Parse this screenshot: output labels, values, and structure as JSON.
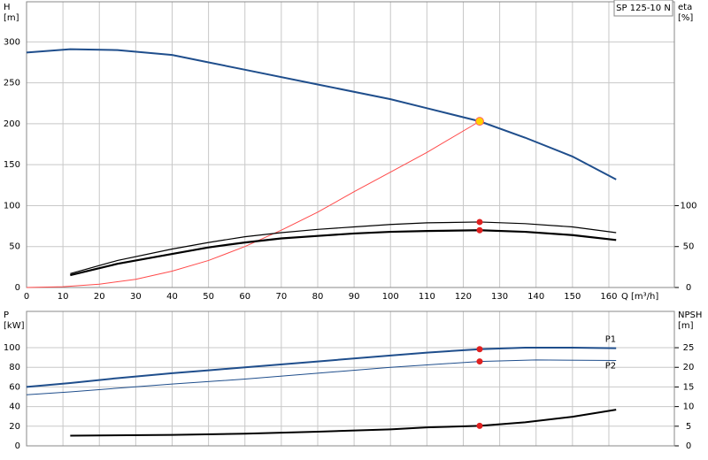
{
  "chart_data": [
    {
      "type": "line",
      "title": "SP 125-10 N",
      "y_label": "H",
      "y_unit": "[m]",
      "y2_label": "eta",
      "y2_unit": "[%]",
      "x_label": "Q [m³/h]",
      "xlim": [
        0,
        178
      ],
      "xticks": [
        0,
        10,
        20,
        30,
        40,
        50,
        60,
        70,
        80,
        90,
        100,
        110,
        120,
        130,
        140,
        150,
        160
      ],
      "ylim": [
        0,
        349
      ],
      "yticks": [
        0,
        50,
        100,
        150,
        200,
        250,
        300
      ],
      "y2lim": [
        0,
        349
      ],
      "y2ticks": [
        0,
        50,
        100
      ],
      "grid": true,
      "series": [
        {
          "color": "#1f4e8c",
          "line_width": 2,
          "x": [
            0,
            12,
            25,
            40,
            50,
            60,
            80,
            100,
            110,
            124.5,
            137,
            150,
            162
          ],
          "values": [
            287,
            291,
            290,
            284,
            275,
            266,
            248,
            230,
            219,
            203,
            183,
            160,
            132
          ]
        },
        {
          "color": "#ff4a4a",
          "line_width": 1,
          "x": [
            0,
            10,
            20,
            30,
            40,
            50,
            60,
            70,
            80,
            90,
            100,
            110,
            124.5
          ],
          "values": [
            0,
            1,
            4,
            10,
            20,
            33,
            50,
            70,
            92,
            117,
            141,
            165,
            203
          ]
        },
        {
          "color": "#000000",
          "line_width": 1.2,
          "axis": "y2",
          "x": [
            12,
            25,
            40,
            50,
            60,
            70,
            80,
            90,
            100,
            110,
            124.5,
            137,
            150,
            162
          ],
          "values": [
            17,
            33,
            47,
            55,
            62,
            67,
            71,
            74,
            77,
            79,
            80,
            78,
            74,
            67
          ]
        },
        {
          "color": "#000000",
          "line_width": 2.2,
          "axis": "y2",
          "x": [
            12,
            25,
            40,
            50,
            60,
            70,
            80,
            90,
            100,
            110,
            124.5,
            137,
            150,
            162
          ],
          "values": [
            15,
            29,
            41,
            49,
            55,
            60,
            63,
            66,
            68,
            69,
            70,
            68,
            64,
            58
          ]
        }
      ],
      "markers": [
        {
          "x": 124.5,
          "y": 203,
          "color": "#ffd200",
          "stroke": "#ff6060",
          "radius": 4.5
        },
        {
          "x": 124.5,
          "y": 80,
          "color": "#e02020",
          "axis": "y2",
          "radius": 3
        },
        {
          "x": 124.5,
          "y": 70,
          "color": "#e02020",
          "axis": "y2",
          "radius": 3
        }
      ]
    },
    {
      "type": "line",
      "y_label": "P",
      "y_unit": "[kW]",
      "y2_label": "NPSH",
      "y2_unit": "[m]",
      "xlim": [
        0,
        178
      ],
      "xticks": [
        0,
        10,
        20,
        30,
        40,
        50,
        60,
        70,
        80,
        90,
        100,
        110,
        120,
        130,
        140,
        150,
        160
      ],
      "ylim": [
        0,
        137
      ],
      "yticks": [
        0,
        20,
        40,
        60,
        80,
        100
      ],
      "y2lim": [
        0,
        34.25
      ],
      "y2ticks": [
        0,
        5,
        10,
        15,
        20,
        25
      ],
      "grid": true,
      "series": [
        {
          "name": "P1",
          "color": "#1f4e8c",
          "line_width": 2,
          "x": [
            0,
            12,
            25,
            40,
            50,
            60,
            80,
            100,
            110,
            124.5,
            137,
            150,
            162
          ],
          "values": [
            60,
            64,
            69,
            74,
            77,
            80,
            86,
            92,
            95,
            98.5,
            100,
            100,
            99.5
          ]
        },
        {
          "name": "P2",
          "color": "#1f4e8c",
          "line_width": 1,
          "x": [
            0,
            12,
            40,
            60,
            80,
            100,
            124.5,
            140,
            162
          ],
          "values": [
            52,
            55,
            63,
            68,
            74,
            80,
            86,
            87.5,
            87
          ]
        },
        {
          "color": "#000000",
          "line_width": 2,
          "axis": "y2",
          "x": [
            12,
            40,
            60,
            80,
            100,
            110,
            124.5,
            137,
            150,
            162
          ],
          "values": [
            2.6,
            2.8,
            3.1,
            3.6,
            4.2,
            4.7,
            5.1,
            6.0,
            7.4,
            9.2
          ]
        }
      ],
      "markers": [
        {
          "x": 124.5,
          "y": 98.5,
          "color": "#e02020",
          "radius": 3
        },
        {
          "x": 124.5,
          "y": 86,
          "color": "#e02020",
          "radius": 3
        },
        {
          "x": 124.5,
          "y": 5.1,
          "color": "#e02020",
          "axis": "y2",
          "radius": 3
        }
      ]
    }
  ]
}
